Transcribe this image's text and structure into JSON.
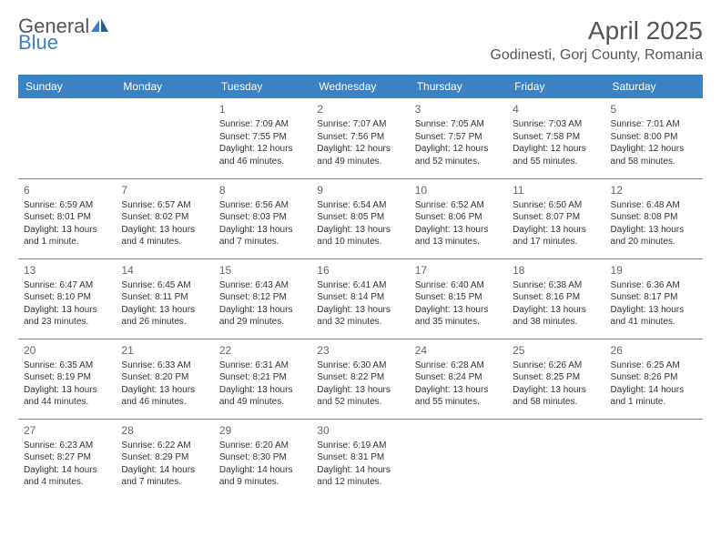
{
  "brand": {
    "part1": "General",
    "part2": "Blue"
  },
  "title": "April 2025",
  "location": "Godinesti, Gorj County, Romania",
  "colors": {
    "header_bg": "#3b82c4",
    "header_text": "#ffffff",
    "body_text": "#333333",
    "daynum_text": "#666666",
    "rule": "#888888",
    "page_bg": "#ffffff"
  },
  "fonts": {
    "title_size": 28,
    "location_size": 16,
    "weekday_size": 12,
    "cell_size": 10
  },
  "weekdays": [
    "Sunday",
    "Monday",
    "Tuesday",
    "Wednesday",
    "Thursday",
    "Friday",
    "Saturday"
  ],
  "weeks": [
    [
      null,
      null,
      {
        "n": "1",
        "sr": "Sunrise: 7:09 AM",
        "ss": "Sunset: 7:55 PM",
        "d1": "Daylight: 12 hours",
        "d2": "and 46 minutes."
      },
      {
        "n": "2",
        "sr": "Sunrise: 7:07 AM",
        "ss": "Sunset: 7:56 PM",
        "d1": "Daylight: 12 hours",
        "d2": "and 49 minutes."
      },
      {
        "n": "3",
        "sr": "Sunrise: 7:05 AM",
        "ss": "Sunset: 7:57 PM",
        "d1": "Daylight: 12 hours",
        "d2": "and 52 minutes."
      },
      {
        "n": "4",
        "sr": "Sunrise: 7:03 AM",
        "ss": "Sunset: 7:58 PM",
        "d1": "Daylight: 12 hours",
        "d2": "and 55 minutes."
      },
      {
        "n": "5",
        "sr": "Sunrise: 7:01 AM",
        "ss": "Sunset: 8:00 PM",
        "d1": "Daylight: 12 hours",
        "d2": "and 58 minutes."
      }
    ],
    [
      {
        "n": "6",
        "sr": "Sunrise: 6:59 AM",
        "ss": "Sunset: 8:01 PM",
        "d1": "Daylight: 13 hours",
        "d2": "and 1 minute."
      },
      {
        "n": "7",
        "sr": "Sunrise: 6:57 AM",
        "ss": "Sunset: 8:02 PM",
        "d1": "Daylight: 13 hours",
        "d2": "and 4 minutes."
      },
      {
        "n": "8",
        "sr": "Sunrise: 6:56 AM",
        "ss": "Sunset: 8:03 PM",
        "d1": "Daylight: 13 hours",
        "d2": "and 7 minutes."
      },
      {
        "n": "9",
        "sr": "Sunrise: 6:54 AM",
        "ss": "Sunset: 8:05 PM",
        "d1": "Daylight: 13 hours",
        "d2": "and 10 minutes."
      },
      {
        "n": "10",
        "sr": "Sunrise: 6:52 AM",
        "ss": "Sunset: 8:06 PM",
        "d1": "Daylight: 13 hours",
        "d2": "and 13 minutes."
      },
      {
        "n": "11",
        "sr": "Sunrise: 6:50 AM",
        "ss": "Sunset: 8:07 PM",
        "d1": "Daylight: 13 hours",
        "d2": "and 17 minutes."
      },
      {
        "n": "12",
        "sr": "Sunrise: 6:48 AM",
        "ss": "Sunset: 8:08 PM",
        "d1": "Daylight: 13 hours",
        "d2": "and 20 minutes."
      }
    ],
    [
      {
        "n": "13",
        "sr": "Sunrise: 6:47 AM",
        "ss": "Sunset: 8:10 PM",
        "d1": "Daylight: 13 hours",
        "d2": "and 23 minutes."
      },
      {
        "n": "14",
        "sr": "Sunrise: 6:45 AM",
        "ss": "Sunset: 8:11 PM",
        "d1": "Daylight: 13 hours",
        "d2": "and 26 minutes."
      },
      {
        "n": "15",
        "sr": "Sunrise: 6:43 AM",
        "ss": "Sunset: 8:12 PM",
        "d1": "Daylight: 13 hours",
        "d2": "and 29 minutes."
      },
      {
        "n": "16",
        "sr": "Sunrise: 6:41 AM",
        "ss": "Sunset: 8:14 PM",
        "d1": "Daylight: 13 hours",
        "d2": "and 32 minutes."
      },
      {
        "n": "17",
        "sr": "Sunrise: 6:40 AM",
        "ss": "Sunset: 8:15 PM",
        "d1": "Daylight: 13 hours",
        "d2": "and 35 minutes."
      },
      {
        "n": "18",
        "sr": "Sunrise: 6:38 AM",
        "ss": "Sunset: 8:16 PM",
        "d1": "Daylight: 13 hours",
        "d2": "and 38 minutes."
      },
      {
        "n": "19",
        "sr": "Sunrise: 6:36 AM",
        "ss": "Sunset: 8:17 PM",
        "d1": "Daylight: 13 hours",
        "d2": "and 41 minutes."
      }
    ],
    [
      {
        "n": "20",
        "sr": "Sunrise: 6:35 AM",
        "ss": "Sunset: 8:19 PM",
        "d1": "Daylight: 13 hours",
        "d2": "and 44 minutes."
      },
      {
        "n": "21",
        "sr": "Sunrise: 6:33 AM",
        "ss": "Sunset: 8:20 PM",
        "d1": "Daylight: 13 hours",
        "d2": "and 46 minutes."
      },
      {
        "n": "22",
        "sr": "Sunrise: 6:31 AM",
        "ss": "Sunset: 8:21 PM",
        "d1": "Daylight: 13 hours",
        "d2": "and 49 minutes."
      },
      {
        "n": "23",
        "sr": "Sunrise: 6:30 AM",
        "ss": "Sunset: 8:22 PM",
        "d1": "Daylight: 13 hours",
        "d2": "and 52 minutes."
      },
      {
        "n": "24",
        "sr": "Sunrise: 6:28 AM",
        "ss": "Sunset: 8:24 PM",
        "d1": "Daylight: 13 hours",
        "d2": "and 55 minutes."
      },
      {
        "n": "25",
        "sr": "Sunrise: 6:26 AM",
        "ss": "Sunset: 8:25 PM",
        "d1": "Daylight: 13 hours",
        "d2": "and 58 minutes."
      },
      {
        "n": "26",
        "sr": "Sunrise: 6:25 AM",
        "ss": "Sunset: 8:26 PM",
        "d1": "Daylight: 14 hours",
        "d2": "and 1 minute."
      }
    ],
    [
      {
        "n": "27",
        "sr": "Sunrise: 6:23 AM",
        "ss": "Sunset: 8:27 PM",
        "d1": "Daylight: 14 hours",
        "d2": "and 4 minutes."
      },
      {
        "n": "28",
        "sr": "Sunrise: 6:22 AM",
        "ss": "Sunset: 8:29 PM",
        "d1": "Daylight: 14 hours",
        "d2": "and 7 minutes."
      },
      {
        "n": "29",
        "sr": "Sunrise: 6:20 AM",
        "ss": "Sunset: 8:30 PM",
        "d1": "Daylight: 14 hours",
        "d2": "and 9 minutes."
      },
      {
        "n": "30",
        "sr": "Sunrise: 6:19 AM",
        "ss": "Sunset: 8:31 PM",
        "d1": "Daylight: 14 hours",
        "d2": "and 12 minutes."
      },
      null,
      null,
      null
    ]
  ]
}
